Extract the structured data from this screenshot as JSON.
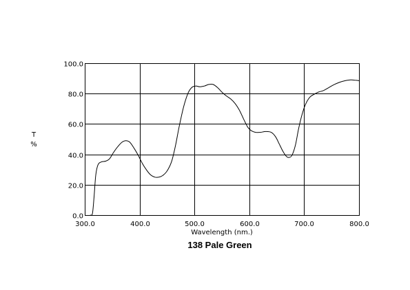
{
  "chart_data": {
    "type": "line",
    "title": "138 Pale Green",
    "xlabel": "Wavelength (nm.)",
    "ylabel_lines": [
      "T",
      "%"
    ],
    "xlim": [
      300,
      800
    ],
    "ylim": [
      0,
      100
    ],
    "x_ticks": [
      "300.0",
      "400.0",
      "500.0",
      "600.0",
      "700.0",
      "800.0"
    ],
    "y_ticks": [
      "0.0",
      "20.0",
      "40.0",
      "60.0",
      "80.0",
      "100.0"
    ],
    "grid": true,
    "series": [
      {
        "color": "#000000",
        "points": [
          [
            310,
            0
          ],
          [
            314,
            1
          ],
          [
            317,
            12
          ],
          [
            320,
            26
          ],
          [
            324,
            33
          ],
          [
            330,
            35
          ],
          [
            338,
            35.5
          ],
          [
            345,
            37
          ],
          [
            352,
            41
          ],
          [
            360,
            45
          ],
          [
            368,
            48
          ],
          [
            375,
            49
          ],
          [
            382,
            48
          ],
          [
            390,
            44
          ],
          [
            398,
            39
          ],
          [
            405,
            34
          ],
          [
            412,
            30
          ],
          [
            420,
            26.5
          ],
          [
            428,
            25
          ],
          [
            435,
            25
          ],
          [
            442,
            26
          ],
          [
            450,
            29
          ],
          [
            458,
            35
          ],
          [
            465,
            45
          ],
          [
            472,
            58
          ],
          [
            480,
            71
          ],
          [
            488,
            80
          ],
          [
            495,
            84
          ],
          [
            502,
            85
          ],
          [
            510,
            84.5
          ],
          [
            518,
            85
          ],
          [
            526,
            86
          ],
          [
            534,
            86
          ],
          [
            542,
            84
          ],
          [
            550,
            81
          ],
          [
            558,
            78.5
          ],
          [
            566,
            76.5
          ],
          [
            574,
            73.5
          ],
          [
            582,
            69
          ],
          [
            590,
            63
          ],
          [
            597,
            58
          ],
          [
            604,
            55.5
          ],
          [
            612,
            54.5
          ],
          [
            620,
            54.5
          ],
          [
            630,
            55
          ],
          [
            640,
            54.5
          ],
          [
            648,
            51.5
          ],
          [
            655,
            46.5
          ],
          [
            662,
            41.5
          ],
          [
            668,
            38.5
          ],
          [
            673,
            38
          ],
          [
            678,
            39.5
          ],
          [
            684,
            46
          ],
          [
            690,
            57
          ],
          [
            696,
            66
          ],
          [
            702,
            72.5
          ],
          [
            710,
            77.5
          ],
          [
            718,
            79.5
          ],
          [
            726,
            81
          ],
          [
            735,
            82
          ],
          [
            745,
            84
          ],
          [
            755,
            86
          ],
          [
            765,
            87.5
          ],
          [
            775,
            88.5
          ],
          [
            785,
            89
          ],
          [
            793,
            88.8
          ],
          [
            800,
            88.5
          ]
        ]
      }
    ]
  }
}
